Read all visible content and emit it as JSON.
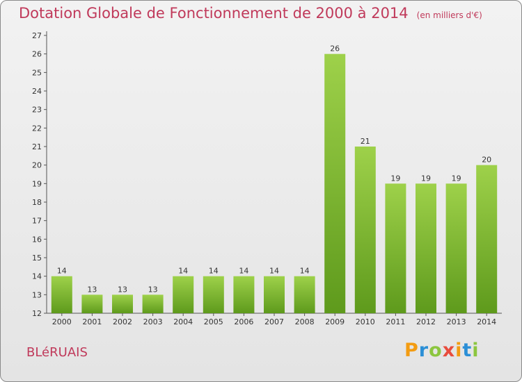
{
  "title": "Dotation Globale de Fonctionnement de 2000 à 2014",
  "unit_label": "(en milliers d'€)",
  "commune": "BLéRUAIS",
  "logo_text": "Proxiti",
  "colors": {
    "title": "#c0395a",
    "bar_light": "#9ed14a",
    "bar_dark": "#5e9a1c",
    "logo": [
      "#f39c12",
      "#2b8fd6",
      "#8cc63f",
      "#e84c3d",
      "#f39c12",
      "#2b8fd6",
      "#8cc63f"
    ]
  },
  "chart_data": {
    "type": "bar",
    "title": "Dotation Globale de Fonctionnement de 2000 à 2014",
    "subtitle": "(en milliers d'€)",
    "xlabel": "",
    "ylabel": "",
    "categories": [
      "2000",
      "2001",
      "2002",
      "2003",
      "2004",
      "2005",
      "2006",
      "2007",
      "2008",
      "2009",
      "2010",
      "2011",
      "2012",
      "2013",
      "2014"
    ],
    "values": [
      14,
      13,
      13,
      13,
      14,
      14,
      14,
      14,
      14,
      26,
      21,
      19,
      19,
      19,
      20
    ],
    "ylim": [
      12,
      27
    ],
    "yticks": [
      12,
      13,
      14,
      15,
      16,
      17,
      18,
      19,
      20,
      21,
      22,
      23,
      24,
      25,
      26,
      27
    ],
    "grid": false,
    "data_labels": true
  }
}
